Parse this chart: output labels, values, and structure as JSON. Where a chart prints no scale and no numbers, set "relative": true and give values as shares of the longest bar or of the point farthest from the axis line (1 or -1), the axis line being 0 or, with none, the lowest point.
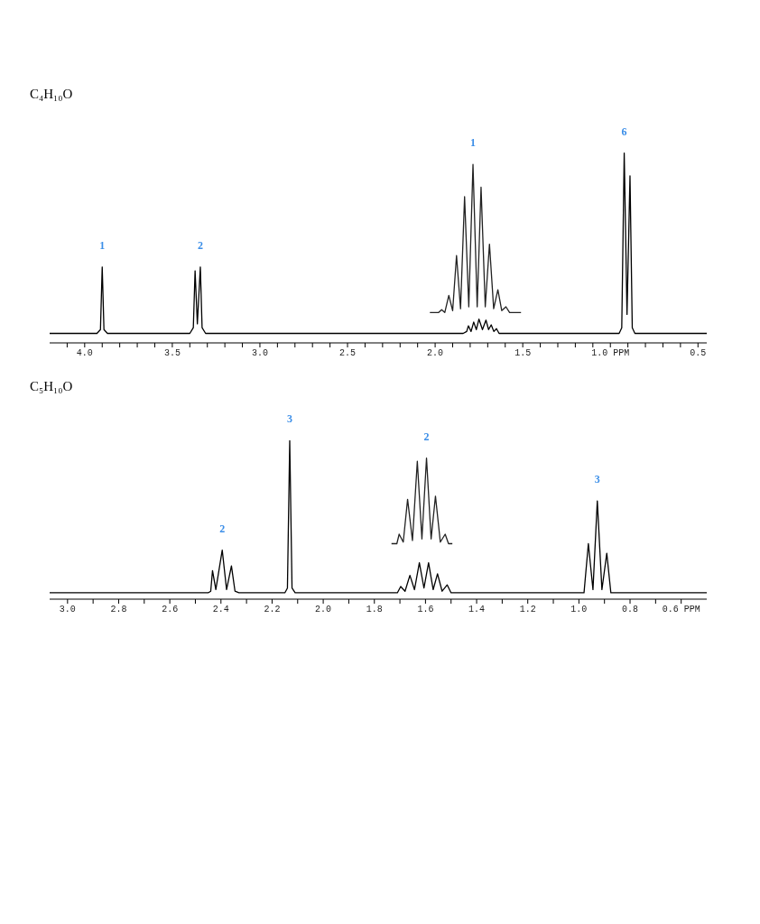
{
  "chart_data": [
    {
      "type": "line",
      "title": "C₄H₁₀O",
      "relative": true,
      "xlim": [
        4.2,
        0.45
      ],
      "xticks": [
        {
          "value": 4.1,
          "label": null
        },
        {
          "value": 4.0,
          "label": "4.0"
        },
        {
          "value": 3.9,
          "label": null
        },
        {
          "value": 3.8,
          "label": null
        },
        {
          "value": 3.7,
          "label": null
        },
        {
          "value": 3.6,
          "label": null
        },
        {
          "value": 3.5,
          "label": "3.5"
        },
        {
          "value": 3.4,
          "label": null
        },
        {
          "value": 3.3,
          "label": null
        },
        {
          "value": 3.2,
          "label": null
        },
        {
          "value": 3.1,
          "label": null
        },
        {
          "value": 3.0,
          "label": "3.0"
        },
        {
          "value": 2.9,
          "label": null
        },
        {
          "value": 2.8,
          "label": null
        },
        {
          "value": 2.7,
          "label": null
        },
        {
          "value": 2.6,
          "label": null
        },
        {
          "value": 2.5,
          "label": "2.5"
        },
        {
          "value": 2.4,
          "label": null
        },
        {
          "value": 2.3,
          "label": null
        },
        {
          "value": 2.2,
          "label": null
        },
        {
          "value": 2.1,
          "label": null
        },
        {
          "value": 2.0,
          "label": "2.0"
        },
        {
          "value": 1.9,
          "label": null
        },
        {
          "value": 1.8,
          "label": null
        },
        {
          "value": 1.7,
          "label": null
        },
        {
          "value": 1.6,
          "label": null
        },
        {
          "value": 1.5,
          "label": "1.5"
        },
        {
          "value": 1.4,
          "label": null
        },
        {
          "value": 1.3,
          "label": null
        },
        {
          "value": 1.2,
          "label": null
        },
        {
          "value": 1.1,
          "label": null
        },
        {
          "value": 1.0,
          "label": "1.0 PPM"
        },
        {
          "value": 0.9,
          "label": null
        },
        {
          "value": 0.8,
          "label": null
        },
        {
          "value": 0.7,
          "label": null
        },
        {
          "value": 0.6,
          "label": null
        },
        {
          "value": 0.5,
          "label": "0.5"
        }
      ],
      "series": [
        {
          "color": "#000000",
          "x": [
            4.2,
            3.93,
            3.91,
            3.9,
            3.89,
            3.87,
            3.4,
            3.38,
            3.37,
            3.357,
            3.34,
            3.33,
            3.31,
            1.84,
            1.82,
            1.81,
            1.795,
            1.78,
            1.765,
            1.75,
            1.73,
            1.71,
            1.695,
            1.68,
            1.665,
            1.65,
            1.635,
            0.95,
            0.935,
            0.921,
            0.905,
            0.888,
            0.875,
            0.86,
            0.45
          ],
          "values": [
            0.05,
            0.05,
            0.07,
            0.4,
            0.07,
            0.05,
            0.05,
            0.08,
            0.38,
            0.1,
            0.4,
            0.08,
            0.05,
            0.05,
            0.06,
            0.09,
            0.06,
            0.11,
            0.07,
            0.125,
            0.07,
            0.12,
            0.07,
            0.095,
            0.06,
            0.075,
            0.05,
            0.05,
            0.08,
            1.0,
            0.15,
            0.88,
            0.08,
            0.05,
            0.05
          ]
        },
        {
          "color": "#222222",
          "x": [
            2.03,
            1.98,
            1.963,
            1.945,
            1.922,
            1.9,
            1.878,
            1.855,
            1.832,
            1.808,
            1.784,
            1.76,
            1.738,
            1.714,
            1.69,
            1.666,
            1.642,
            1.62,
            1.596,
            1.575,
            1.51
          ],
          "values": [
            0.16,
            0.16,
            0.175,
            0.16,
            0.25,
            0.17,
            0.46,
            0.18,
            0.77,
            0.19,
            0.94,
            0.19,
            0.82,
            0.19,
            0.52,
            0.18,
            0.28,
            0.17,
            0.19,
            0.16,
            0.16
          ]
        }
      ],
      "annotations": [
        {
          "text": "1",
          "x": 3.9,
          "y": 0.4
        },
        {
          "text": "2",
          "x": 3.34,
          "y": 0.4
        },
        {
          "text": "1",
          "x": 1.784,
          "y": 0.94
        },
        {
          "text": "6",
          "x": 0.921,
          "y": 1.0
        }
      ]
    },
    {
      "type": "line",
      "title": "C₅H₁₀O",
      "relative": true,
      "xlim": [
        3.07,
        0.5
      ],
      "xticks": [
        {
          "value": 3.0,
          "label": "3.0"
        },
        {
          "value": 2.9,
          "label": null
        },
        {
          "value": 2.8,
          "label": "2.8"
        },
        {
          "value": 2.7,
          "label": null
        },
        {
          "value": 2.6,
          "label": "2.6"
        },
        {
          "value": 2.5,
          "label": null
        },
        {
          "value": 2.4,
          "label": "2.4"
        },
        {
          "value": 2.3,
          "label": null
        },
        {
          "value": 2.2,
          "label": "2.2"
        },
        {
          "value": 2.1,
          "label": null
        },
        {
          "value": 2.0,
          "label": "2.0"
        },
        {
          "value": 1.9,
          "label": null
        },
        {
          "value": 1.8,
          "label": "1.8"
        },
        {
          "value": 1.7,
          "label": null
        },
        {
          "value": 1.6,
          "label": "1.6"
        },
        {
          "value": 1.5,
          "label": null
        },
        {
          "value": 1.4,
          "label": "1.4"
        },
        {
          "value": 1.3,
          "label": null
        },
        {
          "value": 1.2,
          "label": "1.2"
        },
        {
          "value": 1.1,
          "label": null
        },
        {
          "value": 1.0,
          "label": "1.0"
        },
        {
          "value": 0.9,
          "label": null
        },
        {
          "value": 0.8,
          "label": "0.8"
        },
        {
          "value": 0.7,
          "label": null
        },
        {
          "value": 0.6,
          "label": "0.6 PPM"
        }
      ],
      "series": [
        {
          "color": "#000000",
          "x": [
            3.07,
            2.45,
            2.44,
            2.433,
            2.42,
            2.395,
            2.378,
            2.359,
            2.345,
            2.33,
            2.15,
            2.14,
            2.131,
            2.122,
            2.11,
            1.71,
            1.697,
            1.68,
            1.661,
            1.643,
            1.624,
            1.606,
            1.588,
            1.57,
            1.553,
            1.535,
            1.515,
            1.5,
            0.98,
            0.963,
            0.945,
            0.928,
            0.91,
            0.891,
            0.875,
            0.5
          ],
          "values": [
            0.04,
            0.04,
            0.05,
            0.18,
            0.06,
            0.31,
            0.06,
            0.21,
            0.05,
            0.04,
            0.04,
            0.07,
            1.0,
            0.07,
            0.04,
            0.04,
            0.08,
            0.05,
            0.15,
            0.06,
            0.23,
            0.07,
            0.23,
            0.06,
            0.16,
            0.05,
            0.09,
            0.04,
            0.04,
            0.35,
            0.06,
            0.62,
            0.06,
            0.29,
            0.04,
            0.04
          ]
        },
        {
          "color": "#222222",
          "x": [
            1.733,
            1.712,
            1.703,
            1.687,
            1.67,
            1.651,
            1.632,
            1.614,
            1.596,
            1.578,
            1.561,
            1.542,
            1.523,
            1.51,
            1.495
          ],
          "values": [
            0.35,
            0.35,
            0.41,
            0.36,
            0.63,
            0.37,
            0.87,
            0.38,
            0.89,
            0.38,
            0.65,
            0.36,
            0.41,
            0.35,
            0.35
          ]
        }
      ],
      "annotations": [
        {
          "text": "2",
          "x": 2.395,
          "y": 0.31
        },
        {
          "text": "3",
          "x": 2.131,
          "y": 1.0
        },
        {
          "text": "2",
          "x": 1.596,
          "y": 0.89
        },
        {
          "text": "3",
          "x": 0.928,
          "y": 0.62
        }
      ]
    }
  ]
}
